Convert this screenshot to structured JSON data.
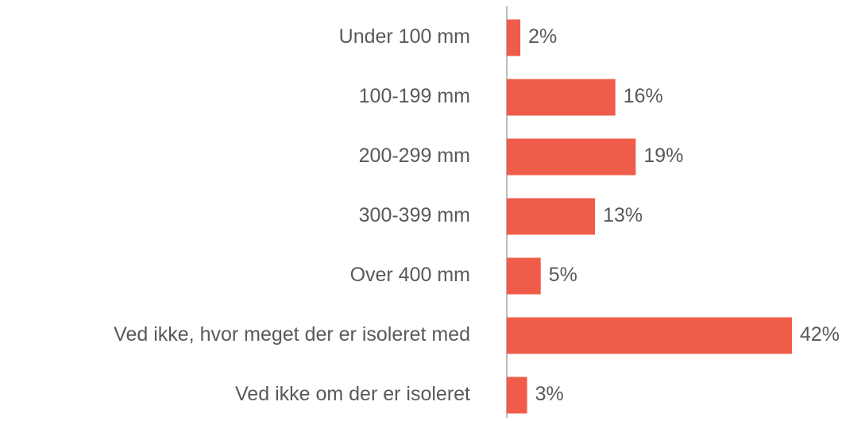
{
  "chart_data": {
    "type": "bar",
    "orientation": "horizontal",
    "categories": [
      "Under 100 mm",
      "100-199 mm",
      "200-299 mm",
      "300-399 mm",
      "Over 400 mm",
      "Ved ikke, hvor meget der er isoleret med",
      "Ved ikke om der er isoleret"
    ],
    "values": [
      2,
      16,
      19,
      13,
      5,
      42,
      3
    ],
    "value_labels": [
      "2%",
      "16%",
      "19%",
      "13%",
      "5%",
      "42%",
      "3%"
    ],
    "color": "#f05c4a"
  }
}
